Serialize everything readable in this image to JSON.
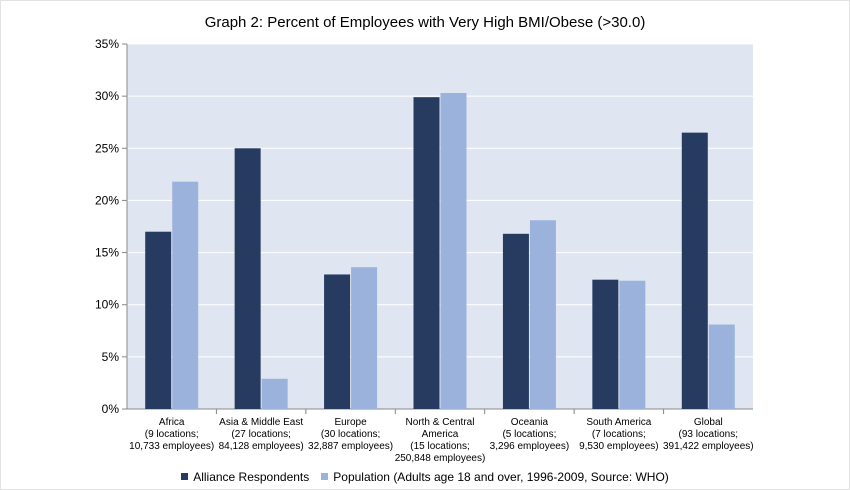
{
  "chart_data": {
    "type": "bar",
    "title": "Graph 2: Percent of Employees with Very High BMI/Obese (>30.0)",
    "xlabel": "",
    "ylabel": "",
    "ylim": [
      0,
      35
    ],
    "y_ticks": [
      "0%",
      "5%",
      "10%",
      "15%",
      "20%",
      "25%",
      "30%",
      "35%"
    ],
    "grid": true,
    "legend_position": "bottom",
    "categories": [
      [
        "Africa",
        "(9 locations;",
        "10,733 employees)"
      ],
      [
        "Asia & Middle East",
        "(27 locations;",
        "84,128 employees)"
      ],
      [
        "Europe",
        "(30 locations;",
        "32,887 employees)"
      ],
      [
        "North & Central",
        "America",
        "(15 locations;",
        "250,848 employees)"
      ],
      [
        "Oceania",
        "(5 locations;",
        "3,296 employees)"
      ],
      [
        "South America",
        "(7 locations;",
        "9,530 employees)"
      ],
      [
        "Global",
        "(93 locations;",
        "391,422 employees)"
      ]
    ],
    "series": [
      {
        "name": "Alliance Respondents",
        "color": "#263b5f",
        "values": [
          17.0,
          25.0,
          12.9,
          29.9,
          16.8,
          12.4,
          26.5
        ]
      },
      {
        "name": "Population (Adults age 18 and over, 1996-2009, Source: WHO)",
        "color": "#9bb3dc",
        "values": [
          21.8,
          2.9,
          13.6,
          30.3,
          18.1,
          12.3,
          8.1
        ]
      }
    ],
    "plot_background": "#dfe6f1",
    "gridline_color": "#ffffff"
  }
}
